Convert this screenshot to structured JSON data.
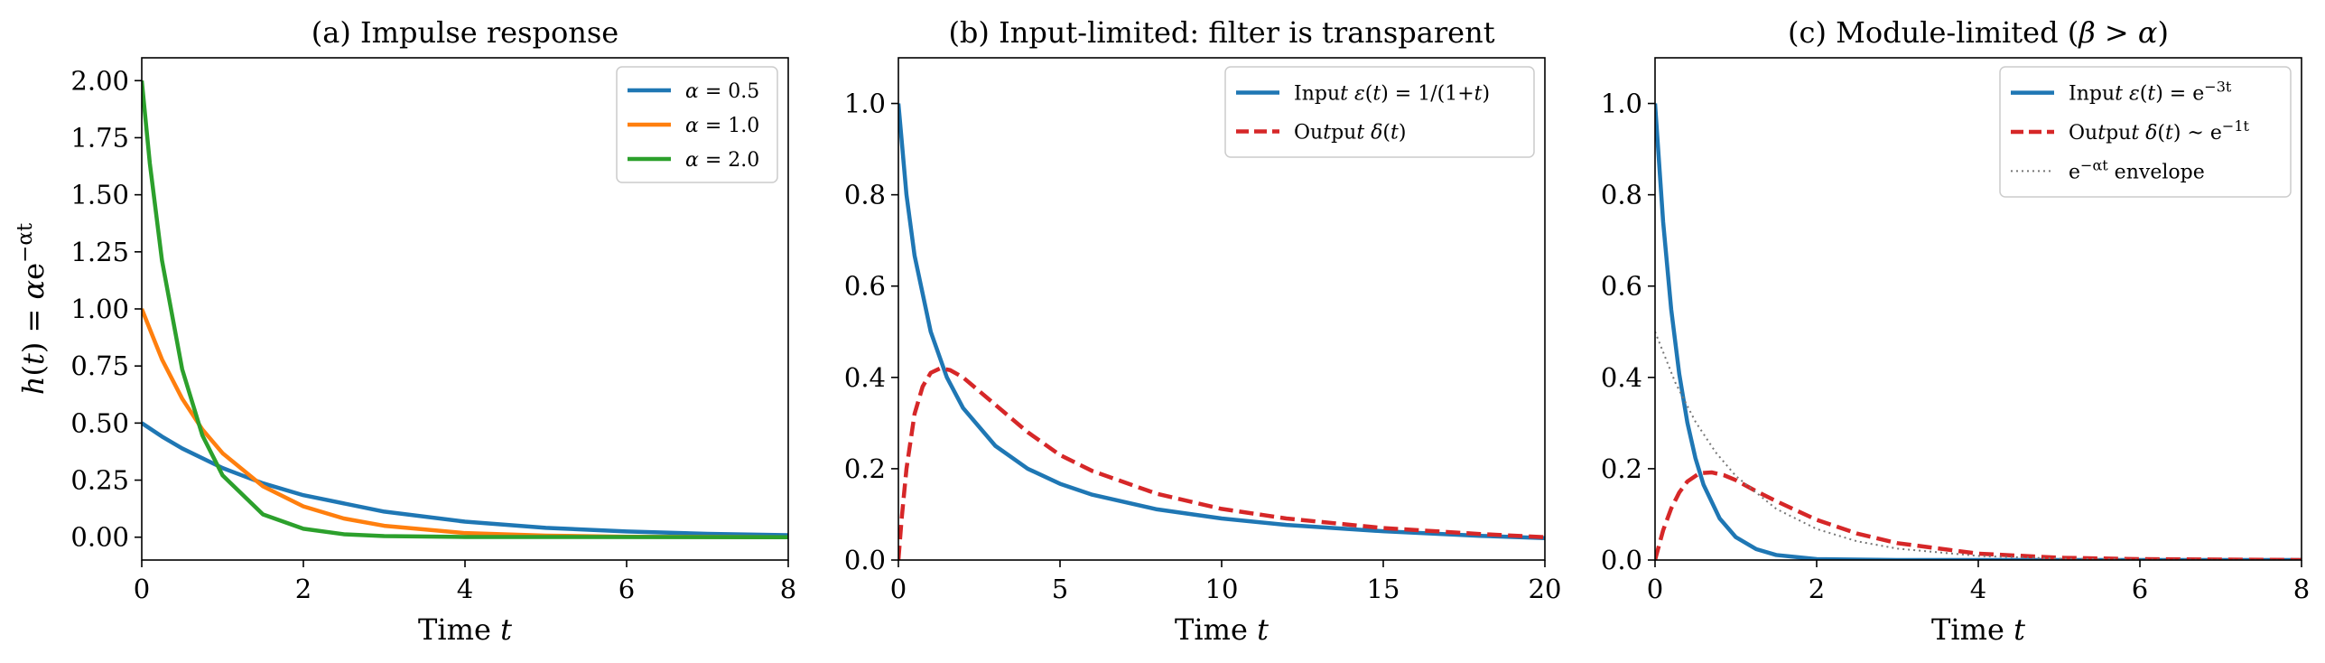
{
  "chart_data": [
    {
      "type": "line",
      "title": "(a) Impulse response",
      "xlabel": "Time t",
      "ylabel": "h(t) = αe^{−αt}",
      "xlim": [
        0,
        8
      ],
      "ylim": [
        -0.1,
        2.1
      ],
      "xticks": [
        "0",
        "2",
        "4",
        "6",
        "8"
      ],
      "yticks": [
        "0.00",
        "0.25",
        "0.50",
        "0.75",
        "1.00",
        "1.25",
        "1.50",
        "1.75",
        "2.00"
      ],
      "grid": false,
      "legend_position": "top-right",
      "series": [
        {
          "name": "α = 0.5",
          "color": "#1f77b4",
          "style": "solid",
          "x": [
            0,
            0.25,
            0.5,
            1,
            1.5,
            2,
            3,
            4,
            5,
            6,
            7,
            8
          ],
          "y": [
            0.5,
            0.441,
            0.389,
            0.303,
            0.236,
            0.184,
            0.112,
            0.068,
            0.041,
            0.025,
            0.015,
            0.009
          ]
        },
        {
          "name": "α = 1.0",
          "color": "#ff7f0e",
          "style": "solid",
          "x": [
            0,
            0.25,
            0.5,
            0.75,
            1,
            1.5,
            2,
            2.5,
            3,
            4,
            5,
            6,
            8
          ],
          "y": [
            1.0,
            0.779,
            0.607,
            0.472,
            0.368,
            0.223,
            0.135,
            0.082,
            0.05,
            0.018,
            0.007,
            0.002,
            0.0
          ]
        },
        {
          "name": "α = 2.0",
          "color": "#2ca02c",
          "style": "solid",
          "x": [
            0,
            0.1,
            0.25,
            0.5,
            0.75,
            1,
            1.5,
            2,
            2.5,
            3,
            4,
            8
          ],
          "y": [
            2.0,
            1.637,
            1.213,
            0.736,
            0.446,
            0.271,
            0.1,
            0.037,
            0.013,
            0.005,
            0.001,
            0.0
          ]
        }
      ]
    },
    {
      "type": "line",
      "title": "(b) Input-limited: filter is transparent",
      "xlabel": "Time t",
      "ylabel": "",
      "xlim": [
        0,
        20
      ],
      "ylim": [
        0,
        1.1
      ],
      "xticks": [
        "0",
        "5",
        "10",
        "15",
        "20"
      ],
      "yticks": [
        "0.0",
        "0.2",
        "0.4",
        "0.6",
        "0.8",
        "1.0"
      ],
      "grid": false,
      "legend_position": "top-right",
      "series": [
        {
          "name": "Input ε(t) = 1/(1+t)",
          "color": "#1f77b4",
          "style": "solid",
          "x": [
            0,
            0.25,
            0.5,
            1,
            1.5,
            2,
            3,
            4,
            5,
            6,
            8,
            10,
            12,
            15,
            18,
            20
          ],
          "y": [
            1.0,
            0.8,
            0.667,
            0.5,
            0.4,
            0.333,
            0.25,
            0.2,
            0.167,
            0.143,
            0.111,
            0.091,
            0.077,
            0.063,
            0.053,
            0.048
          ]
        },
        {
          "name": "Output δ(t)",
          "color": "#d62728",
          "style": "dashed",
          "x": [
            0,
            0.1,
            0.25,
            0.5,
            0.75,
            1,
            1.3,
            1.6,
            2,
            3,
            4,
            5,
            6,
            8,
            10,
            12,
            15,
            18,
            20
          ],
          "y": [
            0,
            0.09,
            0.2,
            0.32,
            0.38,
            0.41,
            0.42,
            0.416,
            0.4,
            0.34,
            0.28,
            0.23,
            0.195,
            0.145,
            0.112,
            0.091,
            0.07,
            0.057,
            0.05
          ]
        }
      ]
    },
    {
      "type": "line",
      "title": "(c) Module-limited (β > α)",
      "xlabel": "Time t",
      "ylabel": "",
      "xlim": [
        0,
        8
      ],
      "ylim": [
        0,
        1.1
      ],
      "xticks": [
        "0",
        "2",
        "4",
        "6",
        "8"
      ],
      "yticks": [
        "0.0",
        "0.2",
        "0.4",
        "0.6",
        "0.8",
        "1.0"
      ],
      "grid": false,
      "legend_position": "top-right",
      "series": [
        {
          "name": "Input ε(t) = e^{−3t}",
          "color": "#1f77b4",
          "style": "solid",
          "x": [
            0,
            0.1,
            0.2,
            0.3,
            0.4,
            0.5,
            0.6,
            0.8,
            1.0,
            1.25,
            1.5,
            2.0,
            3.0,
            8.0
          ],
          "y": [
            1.0,
            0.741,
            0.549,
            0.407,
            0.301,
            0.223,
            0.165,
            0.091,
            0.05,
            0.024,
            0.011,
            0.002,
            0.0,
            0.0
          ]
        },
        {
          "name": "Output δ(t) ~ e^{−1t}",
          "color": "#d62728",
          "style": "dashed",
          "x": [
            0,
            0.1,
            0.2,
            0.3,
            0.4,
            0.55,
            0.7,
            0.85,
            1.0,
            1.25,
            1.5,
            2.0,
            2.5,
            3.0,
            4.0,
            5.0,
            6.0,
            8.0
          ],
          "y": [
            0,
            0.065,
            0.113,
            0.148,
            0.172,
            0.19,
            0.192,
            0.186,
            0.175,
            0.151,
            0.129,
            0.088,
            0.058,
            0.037,
            0.014,
            0.005,
            0.002,
            0.0
          ]
        },
        {
          "name": "e^{−αt} envelope",
          "color": "#777777",
          "style": "dotted",
          "x": [
            0,
            0.25,
            0.5,
            0.75,
            1.0,
            1.5,
            2.0,
            2.5,
            3.0,
            4.0,
            5.0,
            6.0,
            8.0
          ],
          "y": [
            0.5,
            0.389,
            0.303,
            0.236,
            0.184,
            0.112,
            0.068,
            0.041,
            0.025,
            0.009,
            0.003,
            0.001,
            0.0
          ]
        }
      ]
    }
  ]
}
